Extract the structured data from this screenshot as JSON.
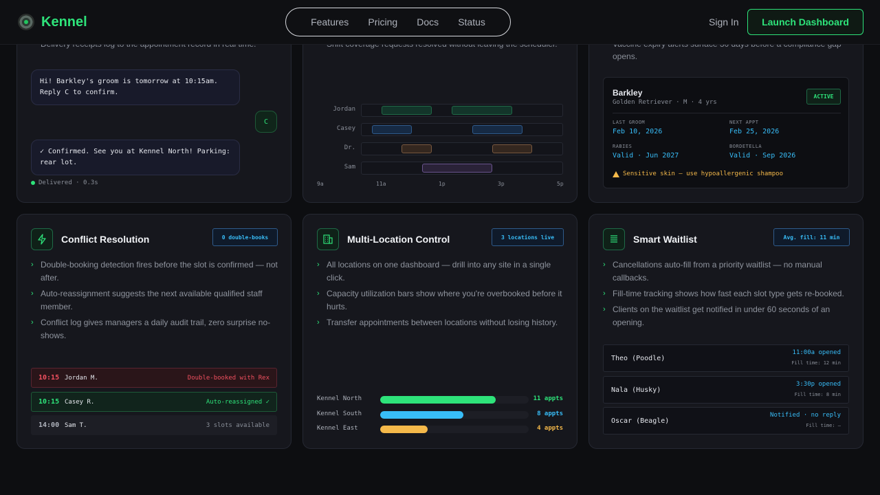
{
  "nav": {
    "brand": "Kennel",
    "links": [
      "Features",
      "Pricing",
      "Docs",
      "Status"
    ],
    "sign_in": "Sign In",
    "launch": "Launch Dashboard"
  },
  "sms_card": {
    "cut_text": "Delivery receipts log to the appointment record in real time.",
    "msg1": "Hi! Barkley's groom is tomorrow at 10:15am. Reply C to confirm.",
    "reply": "C",
    "msg2": "✓ Confirmed. See you at Kennel North! Parking: rear lot.",
    "delivered": "Delivered · 0.3s"
  },
  "schedule_card": {
    "cut_text": "Shift coverage requests resolved without leaving the scheduler.",
    "staff": [
      "Jordan",
      "Casey",
      "Dr.",
      "Sam"
    ],
    "ticks": [
      "9a",
      "11a",
      "1p",
      "3p",
      "5p"
    ]
  },
  "pet_card": {
    "cut_text_1": "Vaccine expiry alerts surface 30 days before a compliance gap",
    "cut_text_2": "opens.",
    "name": "Barkley",
    "breed": "Golden Retriever · M · 4 yrs",
    "status": "ACTIVE",
    "fields": [
      {
        "label": "LAST GROOM",
        "value": "Feb 10, 2026"
      },
      {
        "label": "NEXT APPT",
        "value": "Feb 25, 2026"
      },
      {
        "label": "RABIES",
        "value": "Valid · Jun 2027"
      },
      {
        "label": "BORDETELLA",
        "value": "Valid · Sep 2026"
      }
    ],
    "warning": "Sensitive skin — use hypoallergenic shampoo"
  },
  "conflict": {
    "title": "Conflict Resolution",
    "badge": "0 double-books",
    "bullets": [
      "Double-booking detection fires before the slot is confirmed — not after.",
      "Auto-reassignment suggests the next available qualified staff member.",
      "Conflict log gives managers a daily audit trail, zero surprise no-shows."
    ],
    "rows": [
      {
        "time": "10:15",
        "name": "Jordan M.",
        "note": "Double-booked with Rex"
      },
      {
        "time": "10:15",
        "name": "Casey R.",
        "note": "Auto-reassigned ✓"
      },
      {
        "time": "14:00",
        "name": "Sam T.",
        "note": "3 slots available"
      }
    ]
  },
  "multi": {
    "title": "Multi-Location Control",
    "badge": "3 locations live",
    "bullets": [
      "All locations on one dashboard — drill into any site in a single click.",
      "Capacity utilization bars show where you're overbooked before it hurts.",
      "Transfer appointments between locations without losing history."
    ],
    "locations": [
      {
        "name": "Kennel North",
        "value": "11 appts",
        "fill": 0.78,
        "color": "#2ee37a"
      },
      {
        "name": "Kennel South",
        "value": "8 appts",
        "fill": 0.56,
        "color": "#38bdf8"
      },
      {
        "name": "Kennel East",
        "value": "4 appts",
        "fill": 0.32,
        "color": "#f5b94a"
      }
    ]
  },
  "waitlist": {
    "title": "Smart Waitlist",
    "badge": "Avg. fill: 11 min",
    "bullets": [
      "Cancellations auto-fill from a priority waitlist — no manual callbacks.",
      "Fill-time tracking shows how fast each slot type gets re-booked.",
      "Clients on the waitlist get notified in under 60 seconds of an opening."
    ],
    "rows": [
      {
        "name": "Theo (Poodle)",
        "status": "11:00a opened",
        "fill": "Fill time: 12 min"
      },
      {
        "name": "Nala (Husky)",
        "status": "3:30p opened",
        "fill": "Fill time: 8 min"
      },
      {
        "name": "Oscar (Beagle)",
        "status": "Notified · no reply",
        "fill": "Fill time: —"
      }
    ]
  }
}
